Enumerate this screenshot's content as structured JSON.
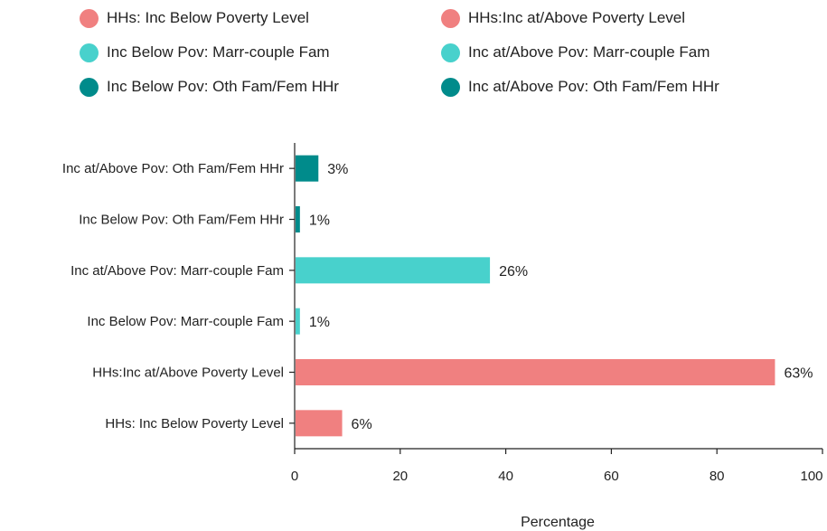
{
  "chart_data": {
    "type": "bar",
    "orientation": "horizontal",
    "categories": [
      "HHs: Inc Below Poverty Level",
      "HHs:Inc at/Above Poverty Level",
      "Inc Below Pov: Marr-couple Fam",
      "Inc at/Above Pov: Marr-couple Fam",
      "Inc Below Pov: Oth Fam/Fem HHr",
      "Inc at/Above Pov: Oth Fam/Fem HHr"
    ],
    "values": [
      9,
      91,
      1,
      37,
      1,
      4.5
    ],
    "data_labels": [
      "6%",
      "63%",
      "1%",
      "26%",
      "1%",
      "3%"
    ],
    "colors": [
      "#f08080",
      "#f08080",
      "#48d1cc",
      "#48d1cc",
      "#008b8b",
      "#008b8b"
    ],
    "xlabel": "Percentage",
    "xlim": [
      0,
      100
    ],
    "xticks": [
      0,
      20,
      40,
      60,
      80,
      100
    ],
    "legend": {
      "placement": "top",
      "entries": [
        {
          "label": "HHs: Inc Below Poverty Level",
          "color": "#f08080"
        },
        {
          "label": "HHs:Inc at/Above Poverty Level",
          "color": "#f08080"
        },
        {
          "label": "Inc Below Pov: Marr-couple Fam",
          "color": "#48d1cc"
        },
        {
          "label": "Inc at/Above Pov: Marr-couple Fam",
          "color": "#48d1cc"
        },
        {
          "label": "Inc Below Pov: Oth Fam/Fem HHr",
          "color": "#008b8b"
        },
        {
          "label": "Inc at/Above Pov: Oth Fam/Fem HHr",
          "color": "#008b8b"
        }
      ]
    },
    "grid": false
  }
}
